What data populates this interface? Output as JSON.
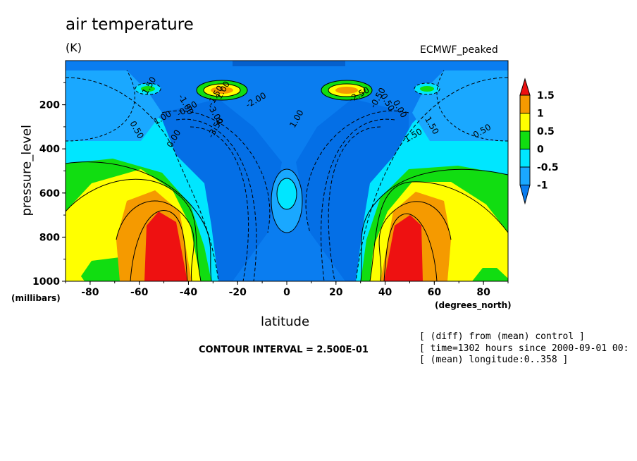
{
  "title": "air temperature",
  "units": "(K)",
  "dataset": "ECMWF_peaked",
  "chart_data": {
    "type": "heatmap",
    "title": "air temperature",
    "units": "(K)",
    "xlabel": "latitude",
    "xunits": "(degrees_north)",
    "ylabel": "pressure_level",
    "yunits": "(millibars)",
    "xlim": [
      -90,
      90
    ],
    "ylim": [
      1000,
      0
    ],
    "xticks": [
      "-80",
      "-60",
      "-40",
      "-20",
      "0",
      "20",
      "40",
      "60",
      "80"
    ],
    "yticks": [
      "200",
      "400",
      "600",
      "800",
      "1000"
    ],
    "contour_interval": "CONTOUR INTERVAL = 2.500E-01",
    "colorbar": {
      "labels": [
        "1.5",
        "1",
        "0.5",
        "0",
        "-0.5",
        "-1"
      ],
      "colors": [
        "#ee1111",
        "#f59a00",
        "#ffff00",
        "#11dd11",
        "#00e6ff",
        "#0a7df0"
      ]
    },
    "contour_labels": [
      "1.50",
      "1.00",
      "0.50",
      "0.00",
      "-0.50",
      "-1.00",
      "-1.50",
      "-2.00",
      "-3.00",
      "-3.50",
      "-2.50",
      "0.50",
      "1.00",
      "1.50"
    ],
    "features": [
      {
        "name": "southern warm maximum",
        "lat": -50,
        "level": 850,
        "value": 1.5
      },
      {
        "name": "northern warm maximum",
        "lat": 48,
        "level": 880,
        "value": 1.5
      },
      {
        "name": "southern upper warm spot",
        "lat": -28,
        "level": 130,
        "value": 1.5
      },
      {
        "name": "northern upper warm spot",
        "lat": 28,
        "level": 130,
        "value": 1.5
      },
      {
        "name": "equatorial mid-level minimum",
        "lat": 0,
        "level": 400,
        "value": -3.0
      }
    ]
  },
  "notes": [
    "[ (diff) from (mean) control ]",
    "[ time=1302 hours since 2000-09-01 00:",
    "[ (mean) longitude:0..358 ]"
  ]
}
